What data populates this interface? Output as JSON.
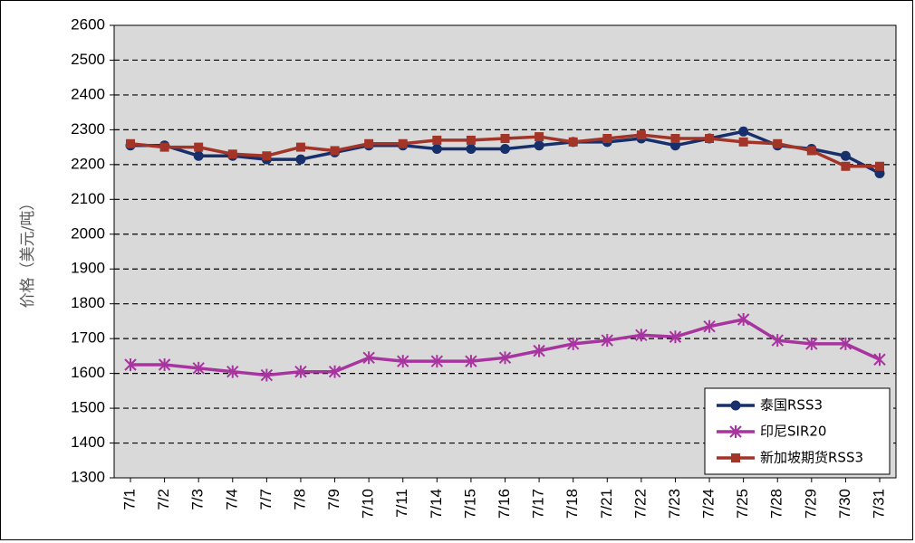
{
  "chart_data": {
    "type": "line",
    "title": "",
    "xlabel": "",
    "ylabel": "价格（美元/吨）",
    "ylim": [
      1300,
      2600
    ],
    "y_ticks": [
      1300,
      1400,
      1500,
      1600,
      1700,
      1800,
      1900,
      2000,
      2100,
      2200,
      2300,
      2400,
      2500,
      2600
    ],
    "grid": "horizontal dashed",
    "legend_position": "bottom-right",
    "categories": [
      "7/1",
      "7/2",
      "7/3",
      "7/4",
      "7/7",
      "7/8",
      "7/9",
      "7/10",
      "7/11",
      "7/14",
      "7/15",
      "7/16",
      "7/17",
      "7/18",
      "7/21",
      "7/22",
      "7/23",
      "7/24",
      "7/25",
      "7/28",
      "7/29",
      "7/30",
      "7/31"
    ],
    "series": [
      {
        "name": "泰国RSS3",
        "color": "#17306b",
        "marker": "circle",
        "values": [
          2255,
          2255,
          2225,
          2225,
          2215,
          2215,
          2235,
          2255,
          2255,
          2245,
          2245,
          2245,
          2255,
          2265,
          2265,
          2275,
          2255,
          2275,
          2295,
          2255,
          2245,
          2225,
          2175
        ]
      },
      {
        "name": "印尼SIR20",
        "color": "#a8349f",
        "marker": "star",
        "values": [
          1625,
          1625,
          1615,
          1605,
          1595,
          1605,
          1605,
          1645,
          1635,
          1635,
          1635,
          1645,
          1665,
          1685,
          1695,
          1710,
          1705,
          1735,
          1755,
          1695,
          1685,
          1685,
          1640
        ]
      },
      {
        "name": "新加坡期货RSS3",
        "color": "#a33428",
        "marker": "square",
        "values": [
          2260,
          2250,
          2250,
          2230,
          2225,
          2250,
          2240,
          2260,
          2260,
          2270,
          2270,
          2275,
          2280,
          2265,
          2275,
          2285,
          2275,
          2275,
          2265,
          2260,
          2240,
          2195,
          2195
        ]
      }
    ]
  }
}
